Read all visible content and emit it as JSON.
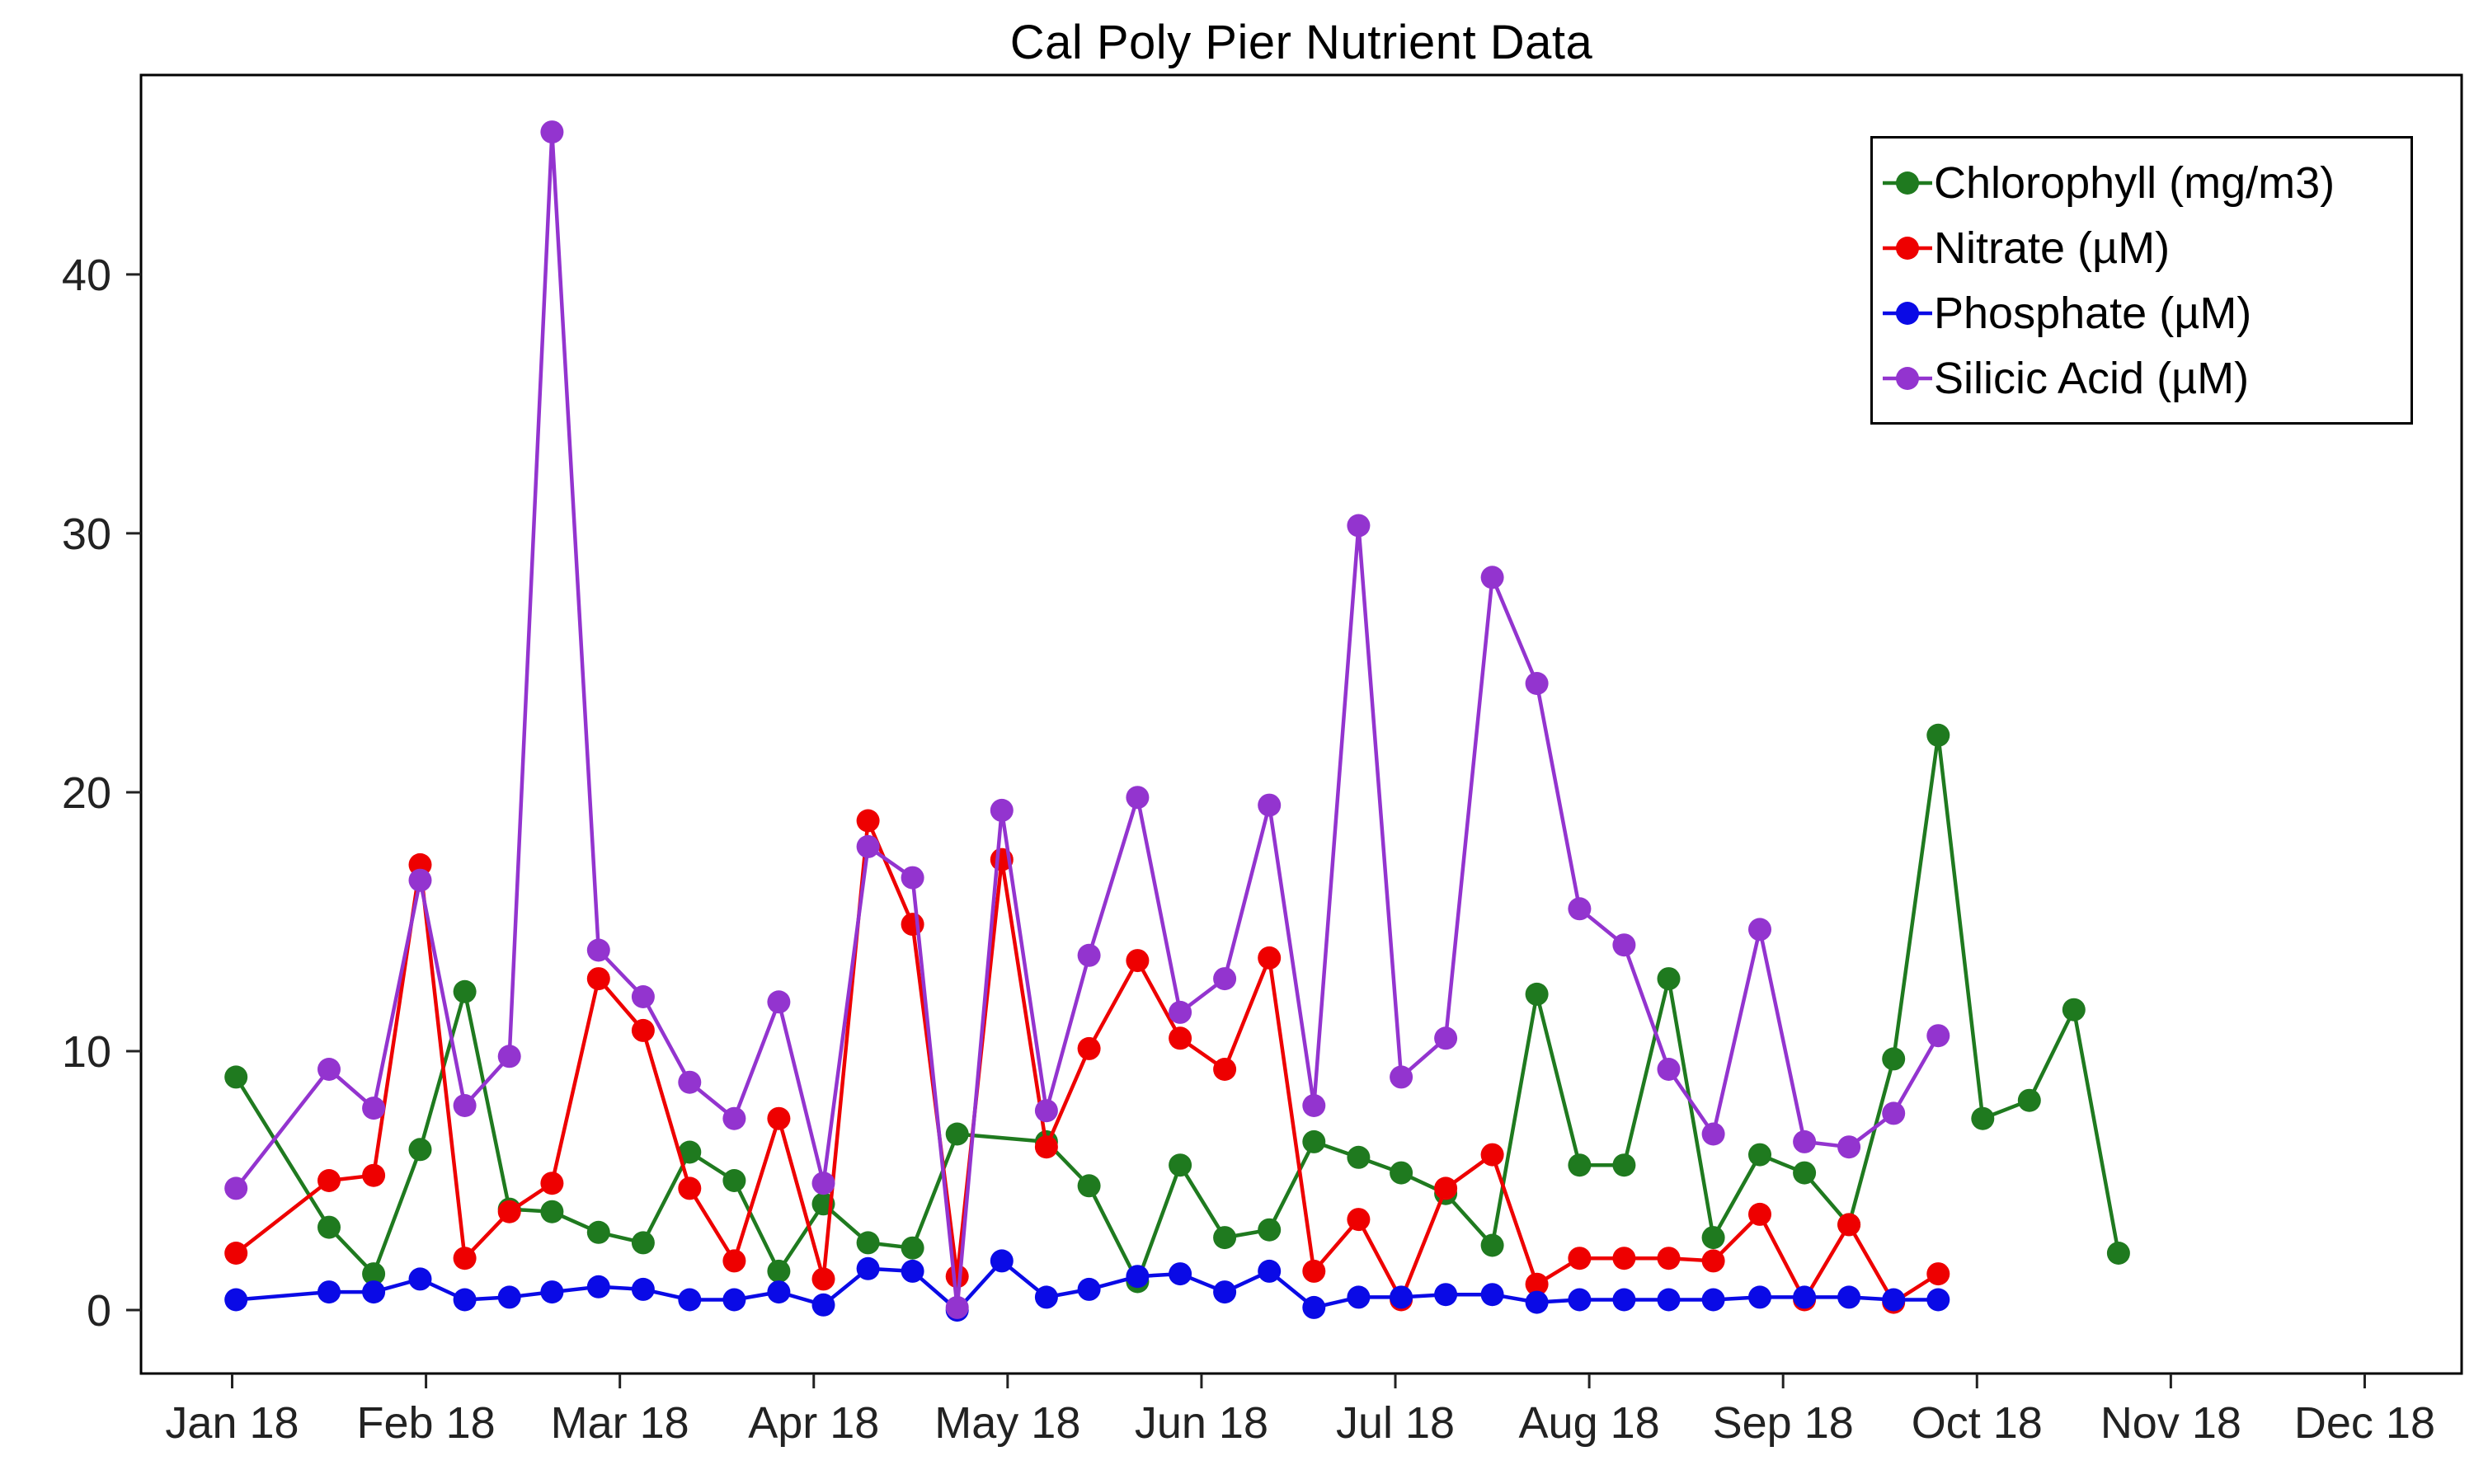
{
  "title": "Cal Poly Pier Nutrient Data",
  "chart_data": {
    "type": "line",
    "title": "Cal Poly Pier Nutrient Data",
    "xlabel": "",
    "ylabel": "",
    "grid": false,
    "legend_position": "top-right",
    "x_unit": "months since Jan 2018 (0 = Jan 18)",
    "x_tick_labels": [
      "Jan 18",
      "Feb 18",
      "Mar 18",
      "Apr 18",
      "May 18",
      "Jun 18",
      "Jul 18",
      "Aug 18",
      "Sep 18",
      "Oct 18",
      "Nov 18",
      "Dec 18"
    ],
    "y_ticks": [
      0,
      10,
      20,
      30,
      40
    ],
    "xlim": [
      -0.47,
      11.5
    ],
    "ylim": [
      -2.45,
      47.7
    ],
    "series": [
      {
        "name": "Chlorophyll (mg/m3)",
        "color": "#1f7a1f",
        "x": [
          0.02,
          0.5,
          0.73,
          0.97,
          1.2,
          1.43,
          1.65,
          1.89,
          2.12,
          2.36,
          2.59,
          2.82,
          3.05,
          3.28,
          3.51,
          3.74,
          4.2,
          4.42,
          4.67,
          4.89,
          5.12,
          5.35,
          5.58,
          5.81,
          6.03,
          6.26,
          6.5,
          6.73,
          6.95,
          7.18,
          7.41,
          7.64,
          7.88,
          8.11,
          8.34,
          8.57,
          8.8,
          9.03,
          9.27,
          9.5,
          9.73
        ],
        "values": [
          9.0,
          3.2,
          1.4,
          6.2,
          12.3,
          3.9,
          3.8,
          3.0,
          2.6,
          6.1,
          5.0,
          1.5,
          4.1,
          2.6,
          2.4,
          6.8,
          6.5,
          4.8,
          1.1,
          5.6,
          2.8,
          3.1,
          6.5,
          5.9,
          5.3,
          4.5,
          2.5,
          12.2,
          5.6,
          5.6,
          12.8,
          2.8,
          6.0,
          5.3,
          3.3,
          9.7,
          22.2,
          7.4,
          8.1,
          11.6,
          2.2
        ]
      },
      {
        "name": "Nitrate (µM)",
        "color": "#ee0000",
        "x": [
          0.02,
          0.5,
          0.73,
          0.97,
          1.2,
          1.43,
          1.65,
          1.89,
          2.12,
          2.36,
          2.59,
          2.82,
          3.05,
          3.28,
          3.51,
          3.74,
          3.97,
          4.2,
          4.42,
          4.67,
          4.89,
          5.12,
          5.35,
          5.58,
          5.81,
          6.03,
          6.26,
          6.5,
          6.73,
          6.95,
          7.18,
          7.41,
          7.64,
          7.88,
          8.11,
          8.34,
          8.57,
          8.8
        ],
        "values": [
          2.2,
          5.0,
          5.2,
          17.2,
          2.0,
          3.8,
          4.9,
          12.8,
          10.8,
          4.7,
          1.9,
          7.4,
          1.2,
          18.9,
          14.9,
          1.3,
          17.4,
          6.3,
          10.1,
          13.5,
          10.5,
          9.3,
          13.6,
          1.5,
          3.5,
          0.4,
          4.7,
          6.0,
          1.0,
          2.0,
          2.0,
          2.0,
          1.9,
          3.7,
          0.4,
          3.3,
          0.3,
          1.4
        ]
      },
      {
        "name": "Phosphate (µM)",
        "color": "#0a0ae6",
        "x": [
          0.02,
          0.5,
          0.73,
          0.97,
          1.2,
          1.43,
          1.65,
          1.89,
          2.12,
          2.36,
          2.59,
          2.82,
          3.05,
          3.28,
          3.51,
          3.74,
          3.97,
          4.2,
          4.42,
          4.67,
          4.89,
          5.12,
          5.35,
          5.58,
          5.81,
          6.03,
          6.26,
          6.5,
          6.73,
          6.95,
          7.18,
          7.41,
          7.64,
          7.88,
          8.11,
          8.34,
          8.57,
          8.8
        ],
        "values": [
          0.4,
          0.7,
          0.7,
          1.2,
          0.4,
          0.5,
          0.7,
          0.9,
          0.8,
          0.4,
          0.4,
          0.7,
          0.2,
          1.6,
          1.5,
          0.0,
          1.9,
          0.5,
          0.8,
          1.3,
          1.4,
          0.7,
          1.5,
          0.1,
          0.5,
          0.5,
          0.6,
          0.6,
          0.3,
          0.4,
          0.4,
          0.4,
          0.4,
          0.5,
          0.5,
          0.5,
          0.4,
          0.4
        ]
      },
      {
        "name": "Silicic Acid (µM)",
        "color": "#9334cf",
        "x": [
          0.02,
          0.5,
          0.73,
          0.97,
          1.2,
          1.43,
          1.65,
          1.89,
          2.12,
          2.36,
          2.59,
          2.82,
          3.05,
          3.28,
          3.51,
          3.74,
          3.97,
          4.2,
          4.42,
          4.67,
          4.89,
          5.12,
          5.35,
          5.58,
          5.81,
          6.03,
          6.26,
          6.5,
          6.73,
          6.95,
          7.18,
          7.41,
          7.64,
          7.88,
          8.11,
          8.34,
          8.57,
          8.8
        ],
        "values": [
          4.7,
          9.3,
          7.8,
          16.6,
          7.9,
          9.8,
          45.5,
          13.9,
          12.1,
          8.8,
          7.4,
          11.9,
          4.9,
          17.9,
          16.7,
          0.1,
          19.3,
          7.7,
          13.7,
          19.8,
          11.5,
          12.8,
          19.5,
          7.9,
          30.3,
          9.0,
          10.5,
          28.3,
          24.2,
          15.5,
          14.1,
          9.3,
          6.8,
          14.7,
          6.5,
          6.3,
          7.6,
          10.6
        ]
      }
    ]
  }
}
